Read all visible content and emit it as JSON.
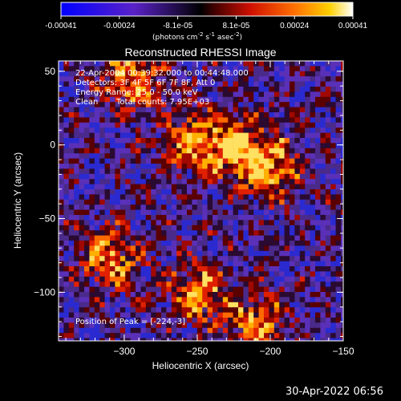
{
  "colorbar": {
    "tick_labels": [
      "-0.00041",
      "-0.00024",
      "-8.1e-05",
      "8.1e-05",
      "0.00024",
      "0.00041"
    ],
    "unit_prefix": "(photons cm",
    "unit_sup1": "-2",
    "unit_mid1": " s",
    "unit_sup2": "-1",
    "unit_mid2": " asec",
    "unit_sup3": "-2",
    "unit_suffix": ")"
  },
  "annotations": {
    "time_range": "22-Apr-2004 00:39:32.000 to 00:44:48.000",
    "detectors": "Detectors: 3F 4F 5F 6F 7F 8F, Att 0",
    "energy_range": "Energy Range: 25.0 - 50.0 keV",
    "clean": "Clean",
    "total_counts": "Total counts: 7.95E+03",
    "peak": "Position of Peak = [-224,-3]"
  },
  "timestamp": "30-Apr-2022 06:56",
  "chart_data": {
    "type": "heatmap",
    "title": "Reconstructed RHESSI Image",
    "xlabel": "Heliocentric X (arcsec)",
    "ylabel": "Heliocentric Y (arcsec)",
    "xlim": [
      -345,
      -150
    ],
    "ylim": [
      -133,
      57
    ],
    "x_ticks": [
      -300,
      -250,
      -200,
      -150
    ],
    "x_tick_labels": [
      "−300",
      "−250",
      "−200",
      "−150"
    ],
    "y_ticks": [
      50,
      0,
      -50,
      -100
    ],
    "y_tick_labels": [
      "50",
      "0",
      "−50",
      "−100"
    ],
    "colormap": "red-temperature with blue negatives",
    "value_range": [
      -0.00041,
      0.00041
    ],
    "peak_position": [
      -224,
      -3
    ],
    "hot_spots": [
      {
        "x": -224,
        "y": -3
      },
      {
        "x": -255,
        "y": 4
      },
      {
        "x": -200,
        "y": -15
      },
      {
        "x": -310,
        "y": -75
      },
      {
        "x": -210,
        "y": -120
      },
      {
        "x": -250,
        "y": -100
      },
      {
        "x": -295,
        "y": 45
      }
    ]
  }
}
